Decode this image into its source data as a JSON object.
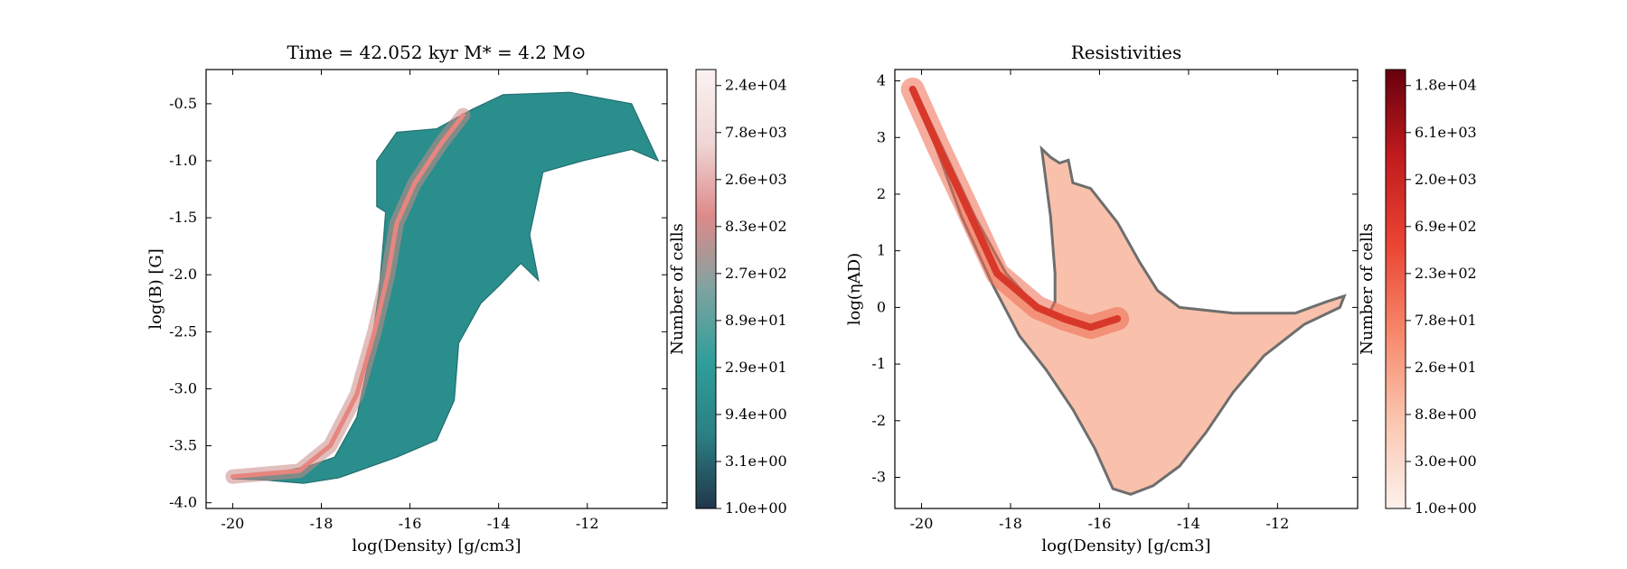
{
  "chart_data": [
    {
      "type": "heatmap",
      "title": "Time = 42.052 kyr    M* = 4.2 M⊙",
      "xlabel": "log(Density) [g/cm3]",
      "ylabel": "log(B) [G]",
      "xlim": [
        -20.6,
        -10.2
      ],
      "ylim": [
        -4.05,
        -0.2
      ],
      "xticks": [
        "-20",
        "-18",
        "-16",
        "-14",
        "-12"
      ],
      "xtick_values": [
        -20,
        -18,
        -16,
        -14,
        -12
      ],
      "yticks": [
        "-0.5",
        "-1.0",
        "-1.5",
        "-2.0",
        "-2.5",
        "-3.0",
        "-3.5",
        "-4.0"
      ],
      "ytick_values": [
        -0.5,
        -1.0,
        -1.5,
        -2.0,
        -2.5,
        -3.0,
        -3.5,
        -4.0
      ],
      "colorbar": {
        "label": "Number of cells",
        "scale": "log",
        "colormap": [
          "#21364c",
          "#2b7f82",
          "#2f9e9a",
          "#7fa3a0",
          "#de8a8a",
          "#f0d6d6",
          "#fbf2f2"
        ],
        "ticks": [
          "1.0e+00",
          "3.1e+00",
          "9.4e+00",
          "2.9e+01",
          "8.9e+01",
          "2.7e+02",
          "8.3e+02",
          "2.6e+03",
          "7.8e+03",
          "2.4e+04"
        ]
      },
      "region_outline": [
        [
          -20.0,
          -3.76
        ],
        [
          -19.2,
          -3.75
        ],
        [
          -18.3,
          -3.68
        ],
        [
          -17.7,
          -3.6
        ],
        [
          -17.2,
          -3.25
        ],
        [
          -16.9,
          -2.7
        ],
        [
          -16.7,
          -2.15
        ],
        [
          -16.6,
          -1.7
        ],
        [
          -16.55,
          -1.45
        ],
        [
          -16.75,
          -1.4
        ],
        [
          -16.75,
          -1.0
        ],
        [
          -16.3,
          -0.75
        ],
        [
          -15.4,
          -0.72
        ],
        [
          -14.6,
          -0.55
        ],
        [
          -13.9,
          -0.42
        ],
        [
          -12.4,
          -0.4
        ],
        [
          -11.0,
          -0.5
        ],
        [
          -10.4,
          -1.0
        ],
        [
          -11.0,
          -0.9
        ],
        [
          -12.1,
          -1.0
        ],
        [
          -13.0,
          -1.1
        ],
        [
          -13.3,
          -1.65
        ],
        [
          -13.1,
          -2.05
        ],
        [
          -13.5,
          -1.9
        ],
        [
          -14.0,
          -2.1
        ],
        [
          -14.4,
          -2.25
        ],
        [
          -14.9,
          -2.6
        ],
        [
          -15.0,
          -3.1
        ],
        [
          -15.4,
          -3.45
        ],
        [
          -16.3,
          -3.6
        ],
        [
          -17.6,
          -3.78
        ],
        [
          -18.4,
          -3.83
        ],
        [
          -19.3,
          -3.8
        ],
        [
          -20.0,
          -3.79
        ]
      ],
      "ridge_line": [
        [
          -20.0,
          -3.77
        ],
        [
          -18.5,
          -3.72
        ],
        [
          -17.8,
          -3.5
        ],
        [
          -17.2,
          -3.05
        ],
        [
          -16.8,
          -2.5
        ],
        [
          -16.5,
          -2.0
        ],
        [
          -16.3,
          -1.55
        ],
        [
          -15.9,
          -1.2
        ],
        [
          -15.3,
          -0.85
        ],
        [
          -14.8,
          -0.6
        ]
      ]
    },
    {
      "type": "heatmap",
      "title": "Resistivities",
      "xlabel": "log(Density) [g/cm3]",
      "ylabel": "log(ηAD)",
      "xlim": [
        -20.6,
        -10.2
      ],
      "ylim": [
        -3.55,
        4.2
      ],
      "xticks": [
        "-20",
        "-18",
        "-16",
        "-14",
        "-12"
      ],
      "xtick_values": [
        -20,
        -18,
        -16,
        -14,
        -12
      ],
      "yticks": [
        "4",
        "3",
        "2",
        "1",
        "0",
        "-1",
        "-2",
        "-3"
      ],
      "ytick_values": [
        4,
        3,
        2,
        1,
        0,
        -1,
        -2,
        -3
      ],
      "colorbar": {
        "label": "Number of cells",
        "scale": "log",
        "colormap": [
          "#fdf1ec",
          "#fbc6b0",
          "#f7886b",
          "#ea4533",
          "#c21b1e",
          "#67000d"
        ],
        "ticks": [
          "1.0e+00",
          "3.0e+00",
          "8.8e+00",
          "2.6e+01",
          "7.8e+01",
          "2.3e+02",
          "6.9e+02",
          "2.0e+03",
          "6.1e+03",
          "1.8e+04"
        ]
      },
      "region_outline": [
        [
          -20.2,
          3.88
        ],
        [
          -20.0,
          3.6
        ],
        [
          -19.4,
          2.6
        ],
        [
          -18.8,
          1.6
        ],
        [
          -18.1,
          0.6
        ],
        [
          -17.4,
          0.0
        ],
        [
          -17.1,
          -0.05
        ],
        [
          -17.0,
          0.1
        ],
        [
          -17.0,
          0.6
        ],
        [
          -17.1,
          1.6
        ],
        [
          -17.3,
          2.8
        ],
        [
          -17.1,
          2.65
        ],
        [
          -16.9,
          2.55
        ],
        [
          -16.7,
          2.6
        ],
        [
          -16.6,
          2.2
        ],
        [
          -16.2,
          2.1
        ],
        [
          -15.6,
          1.5
        ],
        [
          -15.1,
          0.8
        ],
        [
          -14.7,
          0.3
        ],
        [
          -14.2,
          0.0
        ],
        [
          -13.0,
          -0.1
        ],
        [
          -11.6,
          -0.1
        ],
        [
          -10.9,
          0.1
        ],
        [
          -10.5,
          0.2
        ],
        [
          -10.6,
          0.0
        ],
        [
          -11.4,
          -0.3
        ],
        [
          -12.3,
          -0.85
        ],
        [
          -13.0,
          -1.5
        ],
        [
          -13.6,
          -2.2
        ],
        [
          -14.2,
          -2.8
        ],
        [
          -14.8,
          -3.15
        ],
        [
          -15.3,
          -3.3
        ],
        [
          -15.7,
          -3.2
        ],
        [
          -16.1,
          -2.5
        ],
        [
          -16.6,
          -1.8
        ],
        [
          -17.2,
          -1.1
        ],
        [
          -17.8,
          -0.5
        ],
        [
          -18.4,
          0.4
        ],
        [
          -19.1,
          1.6
        ],
        [
          -19.8,
          3.1
        ],
        [
          -20.2,
          3.88
        ]
      ],
      "dense_core": [
        [
          -20.2,
          3.85
        ],
        [
          -19.6,
          2.8
        ],
        [
          -19.0,
          1.8
        ],
        [
          -18.3,
          0.6
        ],
        [
          -17.4,
          0.0
        ],
        [
          -16.8,
          -0.2
        ],
        [
          -16.2,
          -0.35
        ],
        [
          -15.6,
          -0.2
        ]
      ]
    }
  ]
}
